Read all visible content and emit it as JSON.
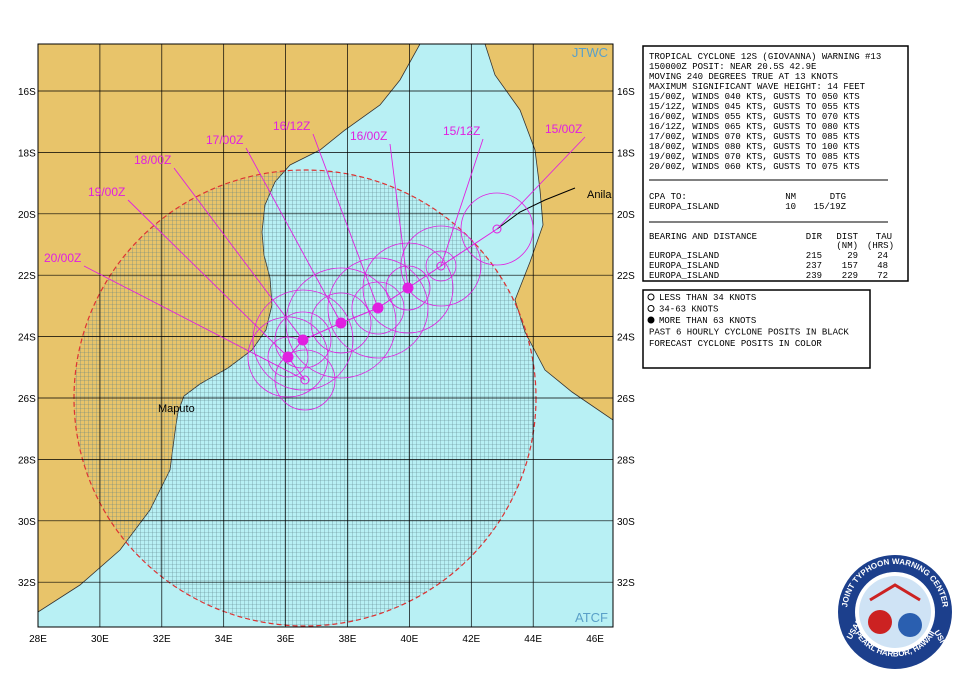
{
  "map": {
    "corner_labels": [
      "JTWC",
      "ATCF"
    ],
    "latitudes": [
      "16S",
      "18S",
      "20S",
      "22S",
      "24S",
      "26S",
      "28S",
      "30S",
      "32S"
    ],
    "longitudes": [
      "28E",
      "30E",
      "32E",
      "34E",
      "36E",
      "38E",
      "40E",
      "42E",
      "44E",
      "46E"
    ],
    "places": [
      "Anila",
      "Maputo"
    ],
    "forecast_times": [
      "15/00Z",
      "15/12Z",
      "16/00Z",
      "16/12Z",
      "17/00Z",
      "18/00Z",
      "19/00Z",
      "20/00Z"
    ]
  },
  "warning": {
    "header": [
      "TROPICAL CYCLONE 12S (GIOVANNA) WARNING #13",
      "150000Z POSIT: NEAR 20.5S 42.9E",
      "MOVING 240 DEGREES TRUE AT 13 KNOTS",
      "MAXIMUM SIGNIFICANT WAVE HEIGHT: 14 FEET",
      "15/00Z, WINDS 040 KTS, GUSTS TO 050 KTS",
      "15/12Z, WINDS 045 KTS, GUSTS TO 055 KTS",
      "16/00Z, WINDS 055 KTS, GUSTS TO 070 KTS",
      "16/12Z, WINDS 065 KTS, GUSTS TO 080 KTS",
      "17/00Z, WINDS 070 KTS, GUSTS TO 085 KTS",
      "18/00Z, WINDS 080 KTS, GUSTS TO 100 KTS",
      "19/00Z, WINDS 070 KTS, GUSTS TO 085 KTS",
      "20/00Z, WINDS 060 KTS, GUSTS TO 075 KTS"
    ],
    "cpa_header": [
      "CPA TO:",
      "NM",
      "DTG"
    ],
    "cpa_rows": [
      [
        "EUROPA_ISLAND",
        "10",
        "15/19Z"
      ]
    ],
    "bearing_header": [
      "BEARING AND DISTANCE",
      "DIR",
      "DIST",
      "TAU"
    ],
    "bearing_subheader": [
      "(NM)",
      "(HRS)"
    ],
    "bearing_rows": [
      [
        "EUROPA_ISLAND",
        "215",
        "29",
        "24"
      ],
      [
        "EUROPA_ISLAND",
        "237",
        "157",
        "48"
      ],
      [
        "EUROPA_ISLAND",
        "239",
        "229",
        "72"
      ]
    ]
  },
  "legend": {
    "lines": [
      "LESS THAN 34 KNOTS",
      "34-63 KNOTS",
      "MORE THAN 63 KNOTS",
      "PAST 6 HOURLY CYCLONE POSITS IN BLACK",
      "FORECAST CYCLONE POSITS IN COLOR"
    ]
  },
  "seal": {
    "top": "JOINT TYPHOON WARNING CENTER",
    "bottom": "PEARL HARBOR, HAWAII",
    "left": "USAF",
    "right": "USN"
  }
}
